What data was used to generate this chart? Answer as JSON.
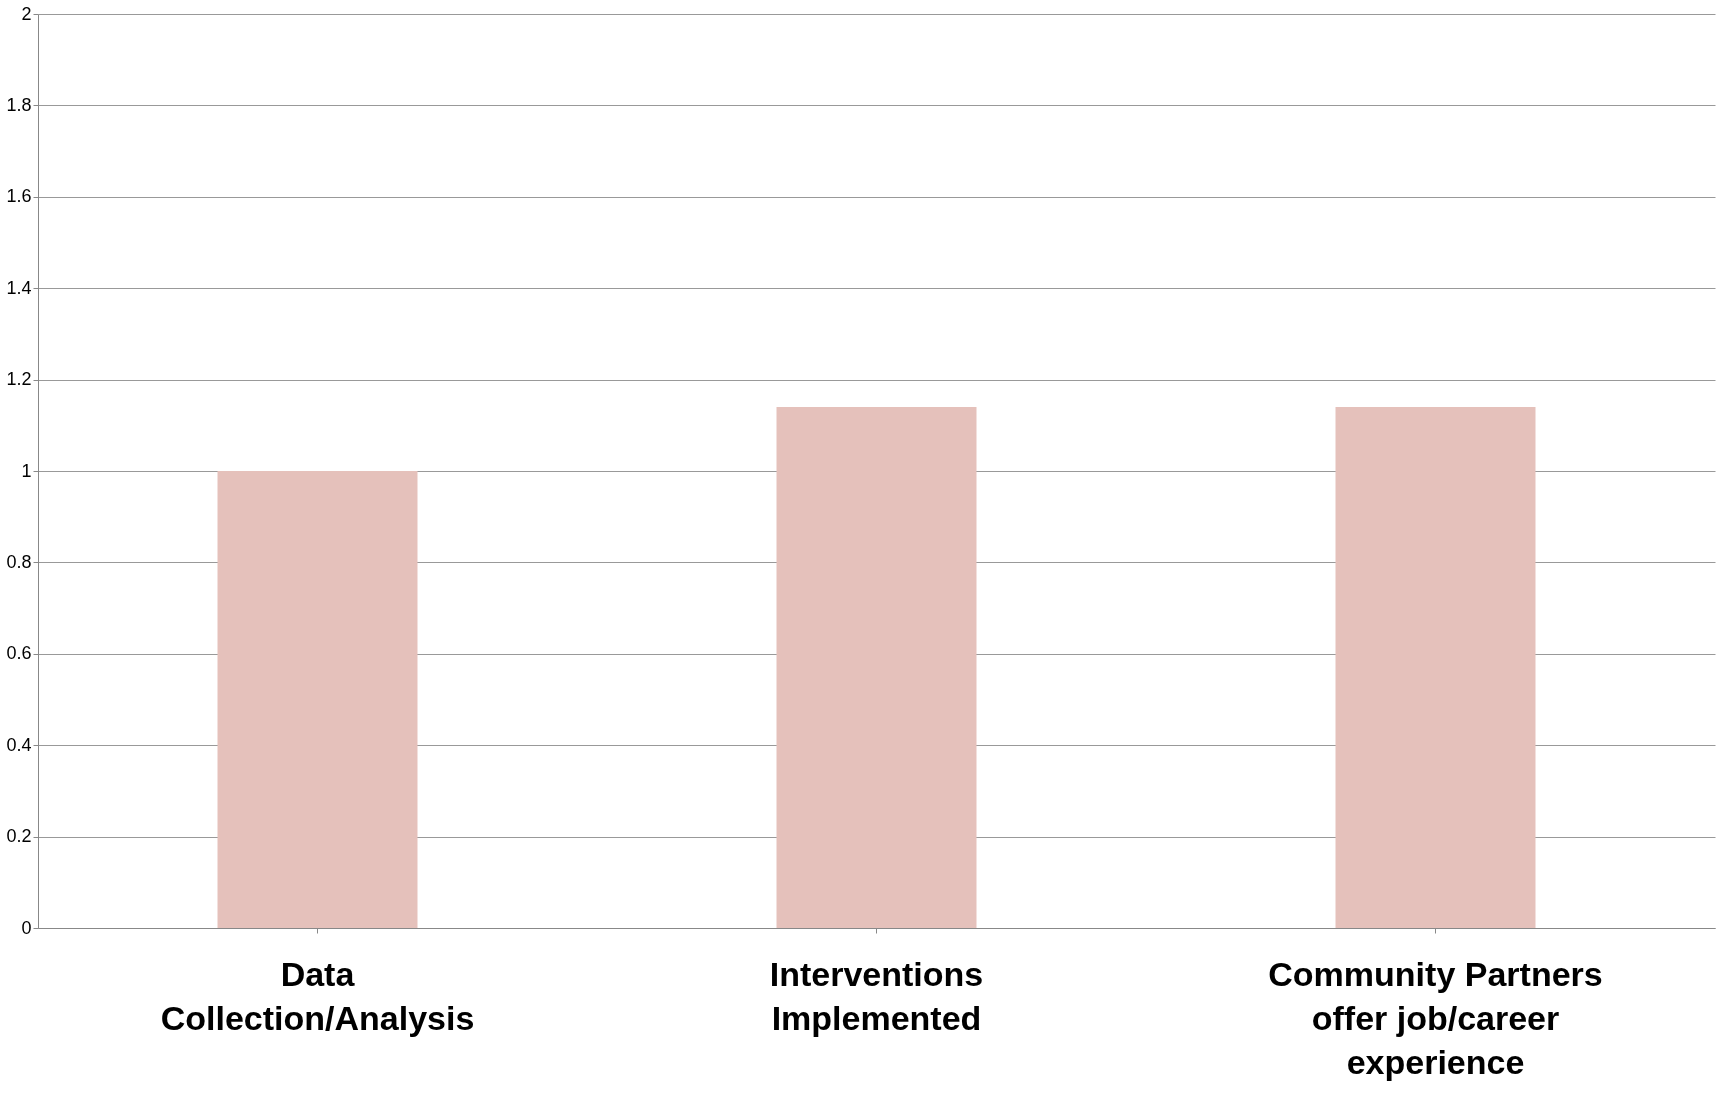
{
  "chart_data": {
    "type": "bar",
    "categories": [
      "Data Collection/Analysis",
      "Interventions Implemented",
      "Community Partners offer job/career experience"
    ],
    "values": [
      1.0,
      1.14,
      1.14
    ],
    "color": "#e5c1bb",
    "ylim": [
      0,
      2
    ],
    "yticks": [
      0,
      0.2,
      0.4,
      0.6,
      0.8,
      1,
      1.2,
      1.4,
      1.6,
      1.8,
      2
    ],
    "grid": "y"
  }
}
